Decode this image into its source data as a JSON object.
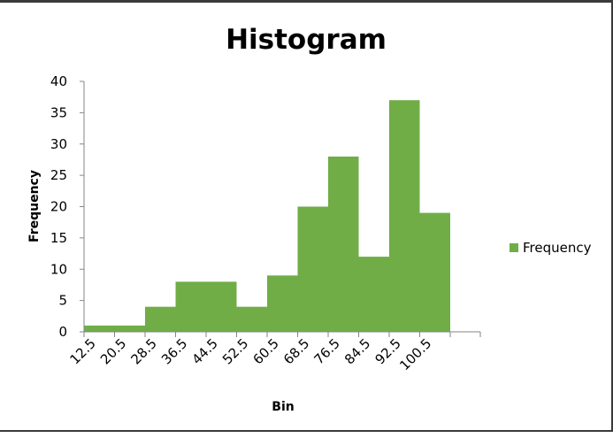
{
  "chart_data": {
    "type": "bar",
    "title": "Histogram",
    "xlabel": "Bin",
    "ylabel": "Frequency",
    "categories": [
      "12.5",
      "20.5",
      "28.5",
      "36.5",
      "44.5",
      "52.5",
      "60.5",
      "68.5",
      "76.5",
      "84.5",
      "92.5",
      "100.5"
    ],
    "series": [
      {
        "name": "Frequency",
        "values": [
          1,
          1,
          4,
          8,
          8,
          4,
          9,
          20,
          28,
          12,
          37,
          19
        ],
        "color": "#70ad47"
      }
    ],
    "ylim": [
      0,
      40
    ],
    "yticks": [
      0,
      5,
      10,
      15,
      20,
      25,
      30,
      35,
      40
    ],
    "grid": false,
    "legend_position": "right"
  }
}
